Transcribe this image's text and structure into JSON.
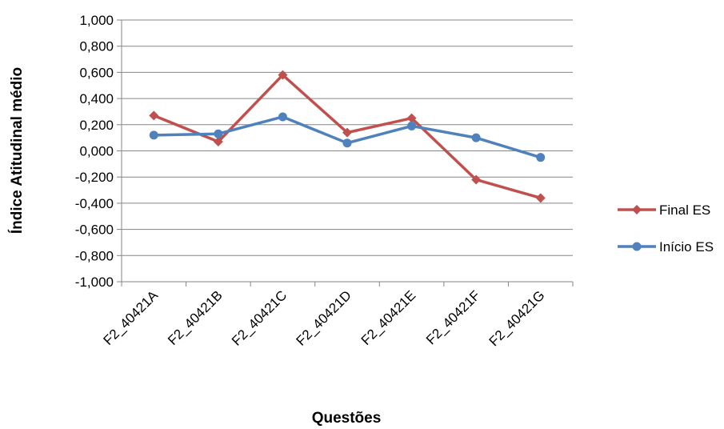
{
  "chart_data": {
    "type": "line",
    "title": "",
    "xlabel": "Questões",
    "ylabel": "Índice Atitudinal médio",
    "categories": [
      "F2_40421A",
      "F2_40421B",
      "F2_40421C",
      "F2_40421D",
      "F2_40421E",
      "F2_40421F",
      "F2_40421G"
    ],
    "ylim": [
      -1.0,
      1.0
    ],
    "yticks": [
      "1,000",
      "0,800",
      "0,600",
      "0,400",
      "0,200",
      "0,000",
      "-0,200",
      "-0,400",
      "-0,600",
      "-0,800",
      "-1,000"
    ],
    "grid": true,
    "legend": "right",
    "series": [
      {
        "name": "Final ES",
        "color": "#C0504D",
        "marker": "diamond",
        "values": [
          0.27,
          0.07,
          0.58,
          0.14,
          0.25,
          -0.22,
          -0.36
        ]
      },
      {
        "name": "Início ES",
        "color": "#4F81BD",
        "marker": "circle",
        "values": [
          0.12,
          0.13,
          0.26,
          0.06,
          0.19,
          0.1,
          -0.05
        ]
      }
    ]
  }
}
